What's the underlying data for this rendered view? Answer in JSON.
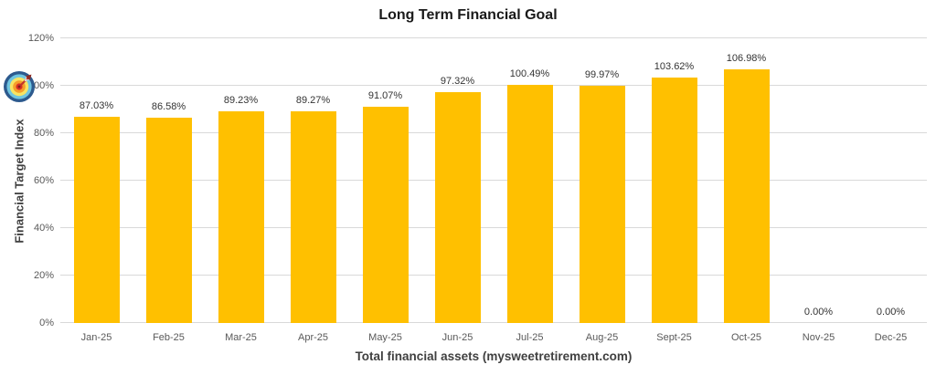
{
  "title": "Long Term Financial Goal",
  "chart_data": {
    "type": "bar",
    "title": "Long Term Financial Goal",
    "xlabel": "Total financial assets (mysweetretirement.com)",
    "ylabel": "Financial Target Index",
    "categories": [
      "Jan-25",
      "Feb-25",
      "Mar-25",
      "Apr-25",
      "May-25",
      "Jun-25",
      "Jul-25",
      "Aug-25",
      "Sept-25",
      "Oct-25",
      "Nov-25",
      "Dec-25"
    ],
    "values": [
      87.03,
      86.58,
      89.23,
      89.27,
      91.07,
      97.32,
      100.49,
      99.97,
      103.62,
      106.98,
      0.0,
      0.0
    ],
    "data_labels": [
      "87.03%",
      "86.58%",
      "89.23%",
      "89.27%",
      "91.07%",
      "97.32%",
      "100.49%",
      "99.97%",
      "103.62%",
      "106.98%",
      "0.00%",
      "0.00%"
    ],
    "ylim": [
      0,
      120
    ],
    "ytick_step": 20,
    "ytick_labels": [
      "0%",
      "20%",
      "40%",
      "60%",
      "80%",
      "100%",
      "120%"
    ],
    "grid": "horizontal-only",
    "legend": "none",
    "bar_color": "#FFC000",
    "gridline_color": "#D9D9D9",
    "tick_label_color": "#595959",
    "data_label_color": "#333333",
    "axis_title_color": "#404040"
  },
  "icons": {
    "target_icon": "bullseye-with-dart"
  }
}
